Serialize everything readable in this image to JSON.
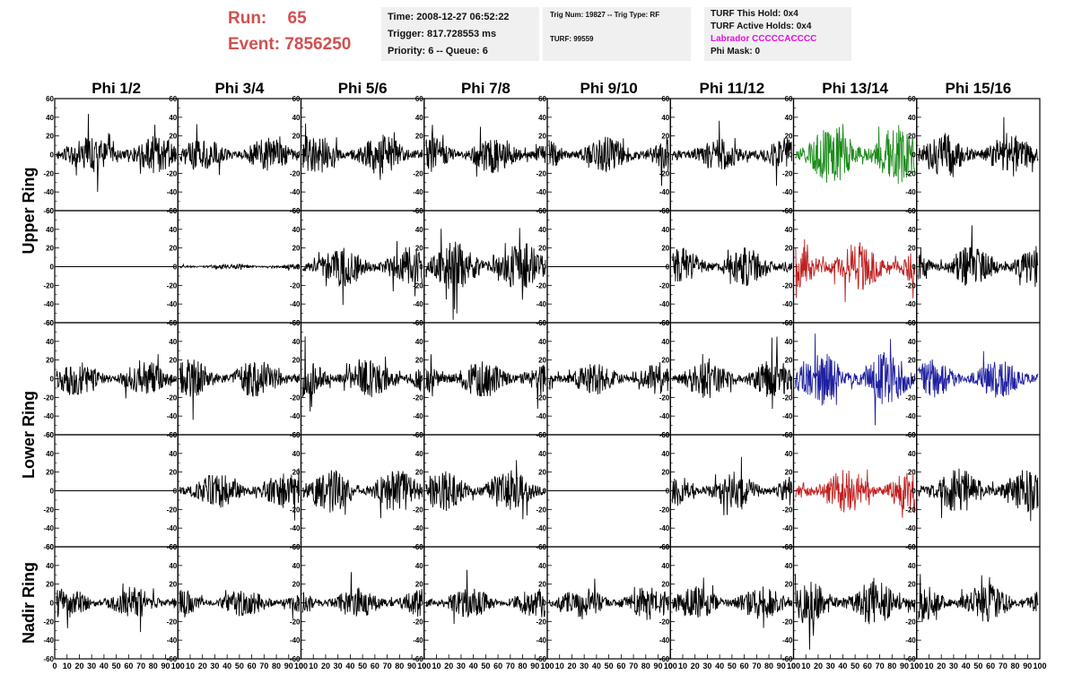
{
  "header": {
    "run_label": "Run:",
    "run_value": "65",
    "event_label": "Event:",
    "event_value": "7856250"
  },
  "info_boxes": {
    "time": "Time: 2008-12-27 06:52:22",
    "trigger": "Trigger: 817.728553 ms",
    "priority": "Priority: 6 -- Queue: 6",
    "trig_num": "Trig Num: 19827 -- Trig Type: RF",
    "turf": "TURF: 99559",
    "turf_this_hold": "TURF This Hold: 0x4",
    "turf_active_holds": "TURF Active Holds: 0x4",
    "labrador": "Labrador CCCCCACCCC",
    "phi_mask": "Phi Mask: 0"
  },
  "colors": {
    "run_text": "#d05050",
    "labrador_text": "#e010e0",
    "trace_black": "#000000",
    "trace_green": "#1a8a1a",
    "trace_red": "#c02020",
    "trace_blue": "#2020a0"
  },
  "chart_data": {
    "type": "line",
    "columns": [
      "Phi 1/2",
      "Phi 3/4",
      "Phi 5/6",
      "Phi 7/8",
      "Phi 9/10",
      "Phi 11/12",
      "Phi 13/14",
      "Phi 15/16"
    ],
    "row_group_labels": [
      "Upper Ring",
      "Lower Ring",
      "Nadir Ring"
    ],
    "ylim": [
      -60,
      60
    ],
    "xlim": [
      0,
      100
    ],
    "y_ticks": [
      "60",
      "40",
      "20",
      "0",
      "-20",
      "-40",
      "-60"
    ],
    "x_ticks": [
      "0",
      "10",
      "20",
      "30",
      "40",
      "50",
      "60",
      "70",
      "80",
      "90",
      "100"
    ],
    "panels": [
      [
        {
          "amp": 14,
          "color": "black",
          "seed": 11
        },
        {
          "amp": 12,
          "color": "black",
          "seed": 12
        },
        {
          "amp": 15,
          "color": "black",
          "seed": 13
        },
        {
          "amp": 14,
          "color": "black",
          "seed": 14
        },
        {
          "amp": 13,
          "color": "black",
          "seed": 15
        },
        {
          "amp": 12,
          "color": "black",
          "seed": 16
        },
        {
          "amp": 22,
          "color": "green",
          "seed": 17
        },
        {
          "amp": 16,
          "color": "black",
          "seed": 18
        }
      ],
      [
        {
          "amp": 0,
          "color": "black",
          "seed": 21
        },
        {
          "amp": 2,
          "color": "black",
          "seed": 22
        },
        {
          "amp": 14,
          "color": "black",
          "seed": 23
        },
        {
          "amp": 18,
          "color": "black",
          "seed": 24
        },
        {
          "amp": 0,
          "color": "black",
          "seed": 25
        },
        {
          "amp": 14,
          "color": "black",
          "seed": 26
        },
        {
          "amp": 18,
          "color": "red",
          "seed": 27
        },
        {
          "amp": 15,
          "color": "black",
          "seed": 28
        }
      ],
      [
        {
          "amp": 13,
          "color": "black",
          "seed": 31
        },
        {
          "amp": 14,
          "color": "black",
          "seed": 32
        },
        {
          "amp": 14,
          "color": "black",
          "seed": 33
        },
        {
          "amp": 14,
          "color": "black",
          "seed": 34
        },
        {
          "amp": 12,
          "color": "black",
          "seed": 35
        },
        {
          "amp": 14,
          "color": "black",
          "seed": 36
        },
        {
          "amp": 20,
          "color": "blue",
          "seed": 37
        },
        {
          "amp": 14,
          "color": "blue",
          "seed": 38
        }
      ],
      [
        {
          "amp": 0,
          "color": "black",
          "seed": 41
        },
        {
          "amp": 13,
          "color": "black",
          "seed": 42
        },
        {
          "amp": 16,
          "color": "black",
          "seed": 43
        },
        {
          "amp": 15,
          "color": "black",
          "seed": 44
        },
        {
          "amp": 0,
          "color": "black",
          "seed": 45
        },
        {
          "amp": 13,
          "color": "black",
          "seed": 46
        },
        {
          "amp": 16,
          "color": "red",
          "seed": 47
        },
        {
          "amp": 16,
          "color": "black",
          "seed": 48
        }
      ],
      [
        {
          "amp": 12,
          "color": "black",
          "seed": 51
        },
        {
          "amp": 10,
          "color": "black",
          "seed": 52
        },
        {
          "amp": 11,
          "color": "black",
          "seed": 53
        },
        {
          "amp": 11,
          "color": "black",
          "seed": 54
        },
        {
          "amp": 12,
          "color": "black",
          "seed": 55
        },
        {
          "amp": 12,
          "color": "black",
          "seed": 56
        },
        {
          "amp": 16,
          "color": "black",
          "seed": 57
        },
        {
          "amp": 14,
          "color": "black",
          "seed": 58
        }
      ]
    ]
  }
}
